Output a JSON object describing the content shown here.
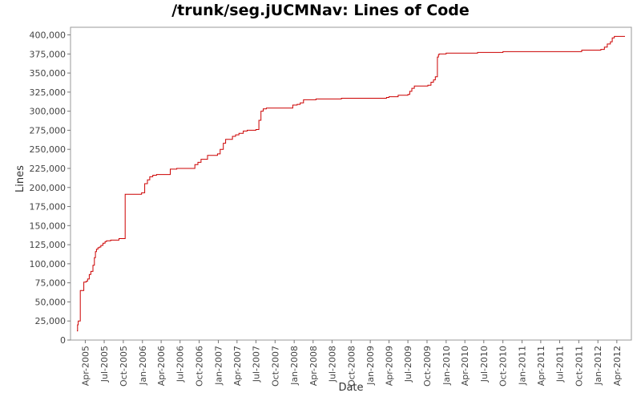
{
  "chart_data": {
    "type": "line",
    "title": "/trunk/seg.jUCMNav: Lines of Code",
    "xlabel": "Date",
    "ylabel": "Lines",
    "ylim": [
      0,
      410000
    ],
    "xlim": [
      "2005-01-20",
      "2012-06-10"
    ],
    "grid": false,
    "series_color": "#cc0000",
    "y_ticks": [
      "0",
      "25,000",
      "50,000",
      "75,000",
      "100,000",
      "125,000",
      "150,000",
      "175,000",
      "200,000",
      "225,000",
      "250,000",
      "275,000",
      "300,000",
      "325,000",
      "350,000",
      "375,000",
      "400,000"
    ],
    "y_tick_values": [
      0,
      25000,
      50000,
      75000,
      100000,
      125000,
      150000,
      175000,
      200000,
      225000,
      250000,
      275000,
      300000,
      325000,
      350000,
      375000,
      400000
    ],
    "x_ticks": [
      "Apr-2005",
      "Jul-2005",
      "Oct-2005",
      "Jan-2006",
      "Apr-2006",
      "Jul-2006",
      "Oct-2006",
      "Jan-2007",
      "Apr-2007",
      "Jul-2007",
      "Oct-2007",
      "Jan-2008",
      "Apr-2008",
      "Jul-2008",
      "Oct-2008",
      "Jan-2009",
      "Apr-2009",
      "Jul-2009",
      "Oct-2009",
      "Jan-2010",
      "Apr-2010",
      "Jul-2010",
      "Oct-2010",
      "Jan-2011",
      "Apr-2011",
      "Jul-2011",
      "Oct-2011",
      "Jan-2012",
      "Apr-2012"
    ],
    "x_tick_dates": [
      "2005-04-01",
      "2005-07-01",
      "2005-10-01",
      "2006-01-01",
      "2006-04-01",
      "2006-07-01",
      "2006-10-01",
      "2007-01-01",
      "2007-04-01",
      "2007-07-01",
      "2007-10-01",
      "2008-01-01",
      "2008-04-01",
      "2008-07-01",
      "2008-10-01",
      "2009-01-01",
      "2009-04-01",
      "2009-07-01",
      "2009-10-01",
      "2010-01-01",
      "2010-04-01",
      "2010-07-01",
      "2010-10-01",
      "2011-01-01",
      "2011-04-01",
      "2011-07-01",
      "2011-10-01",
      "2012-01-01",
      "2012-04-01"
    ],
    "series": [
      {
        "x": [
          "2005-02-20",
          "2005-02-23",
          "2005-02-26",
          "2005-03-05",
          "2005-03-08",
          "2005-03-15",
          "2005-03-25",
          "2005-04-05",
          "2005-04-12",
          "2005-04-20",
          "2005-04-28",
          "2005-05-08",
          "2005-05-15",
          "2005-05-20",
          "2005-05-25",
          "2005-06-01",
          "2005-06-08",
          "2005-06-15",
          "2005-06-25",
          "2005-07-05",
          "2005-07-12",
          "2005-07-20",
          "2005-08-01",
          "2005-08-20",
          "2005-09-10",
          "2005-09-20",
          "2005-10-10",
          "2005-10-15",
          "2005-11-15",
          "2005-12-20",
          "2005-12-28",
          "2006-01-05",
          "2006-01-12",
          "2006-01-25",
          "2006-02-05",
          "2006-02-20",
          "2006-03-10",
          "2006-03-25",
          "2006-04-20",
          "2006-05-15",
          "2006-06-01",
          "2006-06-15",
          "2006-07-01",
          "2006-08-01",
          "2006-09-01",
          "2006-09-10",
          "2006-09-25",
          "2006-10-10",
          "2006-10-25",
          "2006-11-10",
          "2006-11-25",
          "2006-12-10",
          "2006-12-28",
          "2007-01-10",
          "2007-01-25",
          "2007-02-05",
          "2007-02-20",
          "2007-03-10",
          "2007-03-25",
          "2007-04-10",
          "2007-05-01",
          "2007-05-20",
          "2007-06-15",
          "2007-07-01",
          "2007-07-15",
          "2007-07-25",
          "2007-08-05",
          "2007-08-20",
          "2007-09-10",
          "2007-10-15",
          "2007-11-20",
          "2007-12-10",
          "2007-12-25",
          "2008-01-15",
          "2008-01-30",
          "2008-02-15",
          "2008-03-01",
          "2008-04-01",
          "2008-04-15",
          "2008-05-15",
          "2008-07-01",
          "2008-08-15",
          "2008-10-01",
          "2008-12-01",
          "2009-02-01",
          "2009-03-01",
          "2009-03-20",
          "2009-04-01",
          "2009-04-15",
          "2009-05-15",
          "2009-06-15",
          "2009-07-01",
          "2009-07-10",
          "2009-07-20",
          "2009-08-01",
          "2009-08-15",
          "2009-09-15",
          "2009-10-05",
          "2009-10-20",
          "2009-11-01",
          "2009-11-10",
          "2009-11-20",
          "2009-11-25",
          "2009-11-28",
          "2009-12-05",
          "2009-12-15",
          "2010-01-01",
          "2010-03-01",
          "2010-05-01",
          "2010-06-01",
          "2010-08-01",
          "2010-09-20",
          "2010-10-01",
          "2010-12-01",
          "2011-03-01",
          "2011-06-01",
          "2011-08-01",
          "2011-10-01",
          "2011-10-15",
          "2011-11-15",
          "2012-01-01",
          "2012-01-15",
          "2012-02-01",
          "2012-02-15",
          "2012-03-01",
          "2012-03-10",
          "2012-03-20",
          "2012-04-01",
          "2012-04-15",
          "2012-05-01",
          "2012-05-10"
        ],
        "values": [
          12000,
          20000,
          25000,
          25000,
          65000,
          65000,
          76000,
          77000,
          80000,
          86000,
          90000,
          98000,
          108000,
          116000,
          119000,
          121000,
          122000,
          124000,
          127000,
          129000,
          130000,
          130000,
          131000,
          131000,
          133000,
          133000,
          191000,
          191000,
          191000,
          191000,
          193000,
          193000,
          205000,
          210000,
          214000,
          216000,
          217000,
          217000,
          217000,
          224000,
          224000,
          225000,
          225000,
          225000,
          225000,
          230000,
          233000,
          237000,
          237000,
          242000,
          242000,
          242000,
          244000,
          250000,
          258000,
          263000,
          263000,
          267000,
          269000,
          271000,
          274000,
          275000,
          275000,
          276000,
          288000,
          300000,
          303000,
          304000,
          304000,
          304000,
          304000,
          304000,
          308000,
          309000,
          311000,
          315000,
          315000,
          315000,
          316000,
          316000,
          316000,
          317000,
          317000,
          317000,
          317000,
          317000,
          318000,
          319000,
          319000,
          321000,
          321000,
          322000,
          326000,
          330000,
          333000,
          333000,
          333000,
          334000,
          338000,
          341000,
          345000,
          371000,
          374000,
          375000,
          375000,
          375000,
          376000,
          376000,
          376000,
          377000,
          377000,
          377000,
          378000,
          378000,
          378000,
          378000,
          378000,
          378000,
          380000,
          380000,
          380000,
          381000,
          384000,
          388000,
          391000,
          396000,
          398000,
          398000,
          398000,
          398000,
          398000
        ]
      }
    ]
  }
}
